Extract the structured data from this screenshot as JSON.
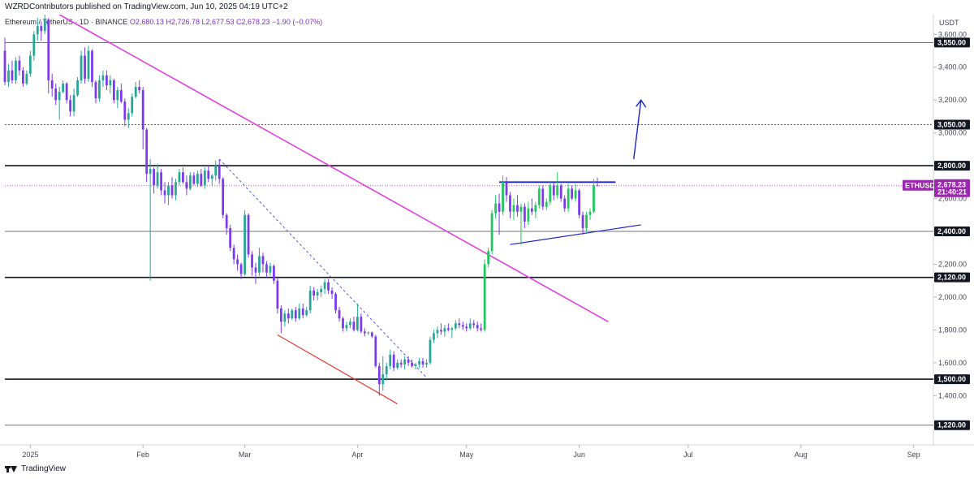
{
  "header": {
    "publisher": "WZRDContributors published on TradingView.com, Jun 10, 2025 04:19 UTC+2"
  },
  "symbol_info": {
    "name": "Ethereum / TetherUS · 1D · BINANCE",
    "ohlc": "O2,680.13  H2,726.78  L2,677.53  C2,678.23  −1.90 (−0.07%)"
  },
  "footer": {
    "brand": "TradingView"
  },
  "colors": {
    "up": "#26a69a",
    "up_bright": "#22c55e",
    "down": "#7c3aed",
    "trend_magenta": "#e040e0",
    "support_red": "#e53935",
    "channel_blue": "#1a23c9",
    "price_badge": "#9c27b0"
  },
  "chart_data": {
    "type": "candlestick",
    "currency_label": "USDT",
    "ylim": [
      1100,
      3720
    ],
    "y_ticks": [
      1400,
      1600,
      1800,
      2000,
      2200,
      2600,
      3000,
      3200,
      3400,
      3600
    ],
    "y_tick_labels": [
      "1,400.00",
      "1,600.00",
      "1,800.00",
      "2,000.00",
      "2,200.00",
      "2,600.00",
      "3,000.00",
      "3,200.00",
      "3,400.00",
      "3,600.00"
    ],
    "x_months": [
      {
        "label": "2025",
        "day": 7
      },
      {
        "label": "Feb",
        "day": 38
      },
      {
        "label": "Mar",
        "day": 66
      },
      {
        "label": "Apr",
        "day": 97
      },
      {
        "label": "May",
        "day": 127
      },
      {
        "label": "Jun",
        "day": 158
      },
      {
        "label": "Jul",
        "day": 188
      },
      {
        "label": "Aug",
        "day": 219
      },
      {
        "label": "Sep",
        "day": 250
      }
    ],
    "x_range_days": [
      0,
      255
    ],
    "horizontal_levels": [
      {
        "value": 3550,
        "label": "3,550.00",
        "style": "solid"
      },
      {
        "value": 3050,
        "label": "3,050.00",
        "style": "dotted"
      },
      {
        "value": 2800,
        "label": "2,800.00",
        "style": "solid-bold"
      },
      {
        "value": 2400,
        "label": "2,400.00",
        "style": "solid"
      },
      {
        "value": 2120,
        "label": "2,120.00",
        "style": "solid-bold"
      },
      {
        "value": 1500,
        "label": "1,500.00",
        "style": "solid-bold"
      },
      {
        "value": 1220,
        "label": "1,220.00",
        "style": "solid"
      }
    ],
    "current_price": {
      "symbol": "ETHUSDT",
      "value": 2678.23,
      "label": "2,678.23",
      "countdown": "21:40:21"
    },
    "trendlines": [
      {
        "name": "downtrend",
        "color": "magenta",
        "from": [
          15,
          3720
        ],
        "to": [
          166,
          1850
        ]
      },
      {
        "name": "falling-support",
        "color": "red",
        "from": [
          75,
          1770
        ],
        "to": [
          108,
          1350
        ]
      },
      {
        "name": "dotted-decline",
        "color": "blue-dotted",
        "from": [
          59,
          2840
        ],
        "to": [
          116,
          1510
        ]
      },
      {
        "name": "range-top",
        "color": "blue",
        "from": [
          136,
          2700
        ],
        "to": [
          168,
          2700
        ]
      },
      {
        "name": "rising-support",
        "color": "blue",
        "from": [
          139,
          2320
        ],
        "to": [
          175,
          2440
        ]
      }
    ],
    "arrow": {
      "from": [
        173,
        2840
      ],
      "to": [
        175,
        3200
      ]
    },
    "candles": [
      [
        0,
        3500,
        3580,
        3290,
        3310
      ],
      [
        1,
        3310,
        3420,
        3280,
        3380
      ],
      [
        2,
        3380,
        3440,
        3300,
        3320
      ],
      [
        3,
        3320,
        3460,
        3300,
        3440
      ],
      [
        4,
        3440,
        3470,
        3350,
        3380
      ],
      [
        5,
        3380,
        3400,
        3280,
        3300
      ],
      [
        6,
        3300,
        3380,
        3290,
        3360
      ],
      [
        7,
        3360,
        3500,
        3340,
        3470
      ],
      [
        8,
        3470,
        3620,
        3440,
        3600
      ],
      [
        9,
        3600,
        3700,
        3560,
        3650
      ],
      [
        10,
        3650,
        3680,
        3560,
        3620
      ],
      [
        11,
        3620,
        3720,
        3600,
        3690
      ],
      [
        12,
        3690,
        3700,
        3240,
        3320
      ],
      [
        13,
        3320,
        3360,
        3220,
        3270
      ],
      [
        14,
        3270,
        3300,
        3170,
        3200
      ],
      [
        15,
        3200,
        3280,
        3080,
        3250
      ],
      [
        16,
        3250,
        3320,
        3240,
        3300
      ],
      [
        17,
        3300,
        3310,
        3180,
        3200
      ],
      [
        18,
        3200,
        3230,
        3100,
        3130
      ],
      [
        19,
        3130,
        3270,
        3100,
        3230
      ],
      [
        20,
        3230,
        3340,
        3220,
        3320
      ],
      [
        21,
        3320,
        3500,
        3300,
        3470
      ],
      [
        22,
        3470,
        3520,
        3300,
        3330
      ],
      [
        23,
        3330,
        3530,
        3310,
        3500
      ],
      [
        24,
        3500,
        3510,
        3280,
        3310
      ],
      [
        25,
        3310,
        3320,
        3180,
        3210
      ],
      [
        26,
        3210,
        3350,
        3190,
        3320
      ],
      [
        27,
        3320,
        3380,
        3280,
        3350
      ],
      [
        28,
        3350,
        3380,
        3260,
        3290
      ],
      [
        29,
        3290,
        3350,
        3240,
        3320
      ],
      [
        30,
        3320,
        3330,
        3180,
        3200
      ],
      [
        31,
        3200,
        3280,
        3150,
        3260
      ],
      [
        32,
        3260,
        3300,
        3180,
        3190
      ],
      [
        33,
        3190,
        3210,
        3040,
        3080
      ],
      [
        34,
        3080,
        3150,
        3030,
        3120
      ],
      [
        35,
        3120,
        3240,
        3100,
        3220
      ],
      [
        36,
        3220,
        3310,
        3210,
        3280
      ],
      [
        37,
        3280,
        3320,
        3240,
        3260
      ],
      [
        38,
        3260,
        3280,
        2900,
        3020
      ],
      [
        39,
        3020,
        3030,
        2700,
        2750
      ],
      [
        40,
        2750,
        2840,
        2100,
        2780
      ],
      [
        41,
        2780,
        2790,
        2630,
        2680
      ],
      [
        42,
        2680,
        2810,
        2660,
        2760
      ],
      [
        43,
        2760,
        2780,
        2620,
        2650
      ],
      [
        44,
        2650,
        2700,
        2570,
        2620
      ],
      [
        45,
        2620,
        2700,
        2560,
        2680
      ],
      [
        46,
        2680,
        2730,
        2600,
        2620
      ],
      [
        47,
        2620,
        2720,
        2590,
        2700
      ],
      [
        48,
        2700,
        2780,
        2680,
        2760
      ],
      [
        49,
        2760,
        2790,
        2690,
        2700
      ],
      [
        50,
        2700,
        2740,
        2620,
        2660
      ],
      [
        51,
        2660,
        2760,
        2650,
        2740
      ],
      [
        52,
        2740,
        2760,
        2680,
        2690
      ],
      [
        53,
        2690,
        2770,
        2670,
        2750
      ],
      [
        54,
        2750,
        2780,
        2670,
        2680
      ],
      [
        55,
        2680,
        2790,
        2660,
        2770
      ],
      [
        56,
        2770,
        2800,
        2700,
        2720
      ],
      [
        57,
        2720,
        2750,
        2680,
        2740
      ],
      [
        58,
        2740,
        2830,
        2710,
        2800
      ],
      [
        59,
        2800,
        2840,
        2690,
        2720
      ],
      [
        60,
        2720,
        2730,
        2480,
        2500
      ],
      [
        61,
        2500,
        2510,
        2380,
        2420
      ],
      [
        62,
        2420,
        2440,
        2280,
        2300
      ],
      [
        63,
        2300,
        2320,
        2200,
        2230
      ],
      [
        64,
        2230,
        2260,
        2160,
        2200
      ],
      [
        65,
        2200,
        2210,
        2110,
        2140
      ],
      [
        66,
        2140,
        2530,
        2130,
        2500
      ],
      [
        67,
        2500,
        2510,
        2240,
        2260
      ],
      [
        68,
        2260,
        2280,
        2130,
        2180
      ],
      [
        69,
        2180,
        2210,
        2080,
        2150
      ],
      [
        70,
        2150,
        2300,
        2130,
        2250
      ],
      [
        71,
        2250,
        2270,
        2150,
        2200
      ],
      [
        72,
        2200,
        2220,
        2120,
        2150
      ],
      [
        73,
        2150,
        2210,
        2130,
        2190
      ],
      [
        74,
        2190,
        2200,
        2080,
        2100
      ],
      [
        75,
        2100,
        2120,
        1900,
        1930
      ],
      [
        76,
        1930,
        1950,
        1780,
        1850
      ],
      [
        77,
        1850,
        1920,
        1820,
        1900
      ],
      [
        78,
        1900,
        1930,
        1840,
        1870
      ],
      [
        79,
        1870,
        1930,
        1860,
        1920
      ],
      [
        80,
        1920,
        1940,
        1850,
        1870
      ],
      [
        81,
        1870,
        1960,
        1860,
        1930
      ],
      [
        82,
        1930,
        1960,
        1870,
        1890
      ],
      [
        83,
        1890,
        1940,
        1880,
        1920
      ],
      [
        84,
        1920,
        2070,
        1900,
        2040
      ],
      [
        85,
        2040,
        2060,
        1980,
        2010
      ],
      [
        86,
        2010,
        2050,
        1980,
        2030
      ],
      [
        87,
        2030,
        2070,
        2000,
        2050
      ],
      [
        88,
        2050,
        2110,
        2020,
        2090
      ],
      [
        89,
        2090,
        2110,
        2020,
        2040
      ],
      [
        90,
        2040,
        2060,
        1990,
        2020
      ],
      [
        91,
        2020,
        2030,
        1900,
        1920
      ],
      [
        92,
        1920,
        1940,
        1850,
        1870
      ],
      [
        93,
        1870,
        1880,
        1790,
        1810
      ],
      [
        94,
        1810,
        1850,
        1790,
        1830
      ],
      [
        95,
        1830,
        1870,
        1810,
        1850
      ],
      [
        96,
        1850,
        1880,
        1790,
        1800
      ],
      [
        97,
        1800,
        1960,
        1790,
        1880
      ],
      [
        98,
        1880,
        1900,
        1780,
        1790
      ],
      [
        99,
        1790,
        1810,
        1760,
        1780
      ],
      [
        100,
        1780,
        1790,
        1770,
        1785
      ],
      [
        101,
        1785,
        1790,
        1750,
        1760
      ],
      [
        102,
        1760,
        1770,
        1570,
        1580
      ],
      [
        103,
        1580,
        1600,
        1400,
        1470
      ],
      [
        104,
        1470,
        1640,
        1430,
        1530
      ],
      [
        105,
        1530,
        1600,
        1490,
        1580
      ],
      [
        106,
        1580,
        1680,
        1560,
        1650
      ],
      [
        107,
        1650,
        1670,
        1550,
        1570
      ],
      [
        108,
        1570,
        1620,
        1560,
        1600
      ],
      [
        109,
        1600,
        1620,
        1570,
        1590
      ],
      [
        110,
        1590,
        1640,
        1560,
        1620
      ],
      [
        111,
        1620,
        1640,
        1580,
        1600
      ],
      [
        112,
        1600,
        1620,
        1570,
        1580
      ],
      [
        113,
        1580,
        1600,
        1560,
        1590
      ],
      [
        114,
        1590,
        1630,
        1570,
        1610
      ],
      [
        115,
        1610,
        1630,
        1570,
        1590
      ],
      [
        116,
        1590,
        1620,
        1570,
        1600
      ],
      [
        117,
        1600,
        1760,
        1590,
        1740
      ],
      [
        118,
        1740,
        1800,
        1720,
        1780
      ],
      [
        119,
        1780,
        1820,
        1750,
        1800
      ],
      [
        120,
        1800,
        1840,
        1770,
        1790
      ],
      [
        121,
        1790,
        1830,
        1760,
        1810
      ],
      [
        122,
        1810,
        1840,
        1790,
        1800
      ],
      [
        123,
        1800,
        1820,
        1750,
        1810
      ],
      [
        124,
        1810,
        1860,
        1800,
        1840
      ],
      [
        125,
        1840,
        1870,
        1810,
        1830
      ],
      [
        126,
        1830,
        1850,
        1800,
        1820
      ],
      [
        127,
        1820,
        1840,
        1790,
        1810
      ],
      [
        128,
        1810,
        1870,
        1800,
        1840
      ],
      [
        129,
        1840,
        1860,
        1810,
        1830
      ],
      [
        130,
        1830,
        1850,
        1790,
        1810
      ],
      [
        131,
        1810,
        1840,
        1790,
        1800
      ],
      [
        132,
        1800,
        2230,
        1790,
        2200
      ],
      [
        133,
        2200,
        2300,
        2180,
        2280
      ],
      [
        134,
        2280,
        2530,
        2260,
        2510
      ],
      [
        135,
        2510,
        2620,
        2480,
        2570
      ],
      [
        136,
        2570,
        2630,
        2380,
        2520
      ],
      [
        137,
        2520,
        2740,
        2500,
        2700
      ],
      [
        138,
        2700,
        2730,
        2580,
        2620
      ],
      [
        139,
        2620,
        2640,
        2480,
        2520
      ],
      [
        140,
        2520,
        2600,
        2470,
        2560
      ],
      [
        141,
        2560,
        2620,
        2490,
        2520
      ],
      [
        142,
        2520,
        2570,
        2320,
        2550
      ],
      [
        143,
        2550,
        2570,
        2420,
        2460
      ],
      [
        144,
        2460,
        2580,
        2440,
        2540
      ],
      [
        145,
        2540,
        2600,
        2500,
        2520
      ],
      [
        146,
        2520,
        2580,
        2480,
        2560
      ],
      [
        147,
        2560,
        2680,
        2540,
        2660
      ],
      [
        148,
        2660,
        2680,
        2530,
        2550
      ],
      [
        149,
        2550,
        2600,
        2530,
        2580
      ],
      [
        150,
        2580,
        2700,
        2560,
        2680
      ],
      [
        151,
        2680,
        2700,
        2590,
        2620
      ],
      [
        152,
        2620,
        2760,
        2600,
        2680
      ],
      [
        153,
        2680,
        2690,
        2580,
        2600
      ],
      [
        154,
        2600,
        2620,
        2520,
        2540
      ],
      [
        155,
        2540,
        2690,
        2520,
        2660
      ],
      [
        156,
        2660,
        2680,
        2590,
        2600
      ],
      [
        157,
        2600,
        2690,
        2580,
        2650
      ],
      [
        158,
        2650,
        2660,
        2480,
        2500
      ],
      [
        159,
        2500,
        2520,
        2380,
        2420
      ],
      [
        160,
        2420,
        2520,
        2400,
        2500
      ],
      [
        161,
        2500,
        2540,
        2470,
        2520
      ],
      [
        162,
        2520,
        2720,
        2510,
        2680
      ],
      [
        163,
        2680,
        2727,
        2677,
        2678
      ]
    ]
  }
}
